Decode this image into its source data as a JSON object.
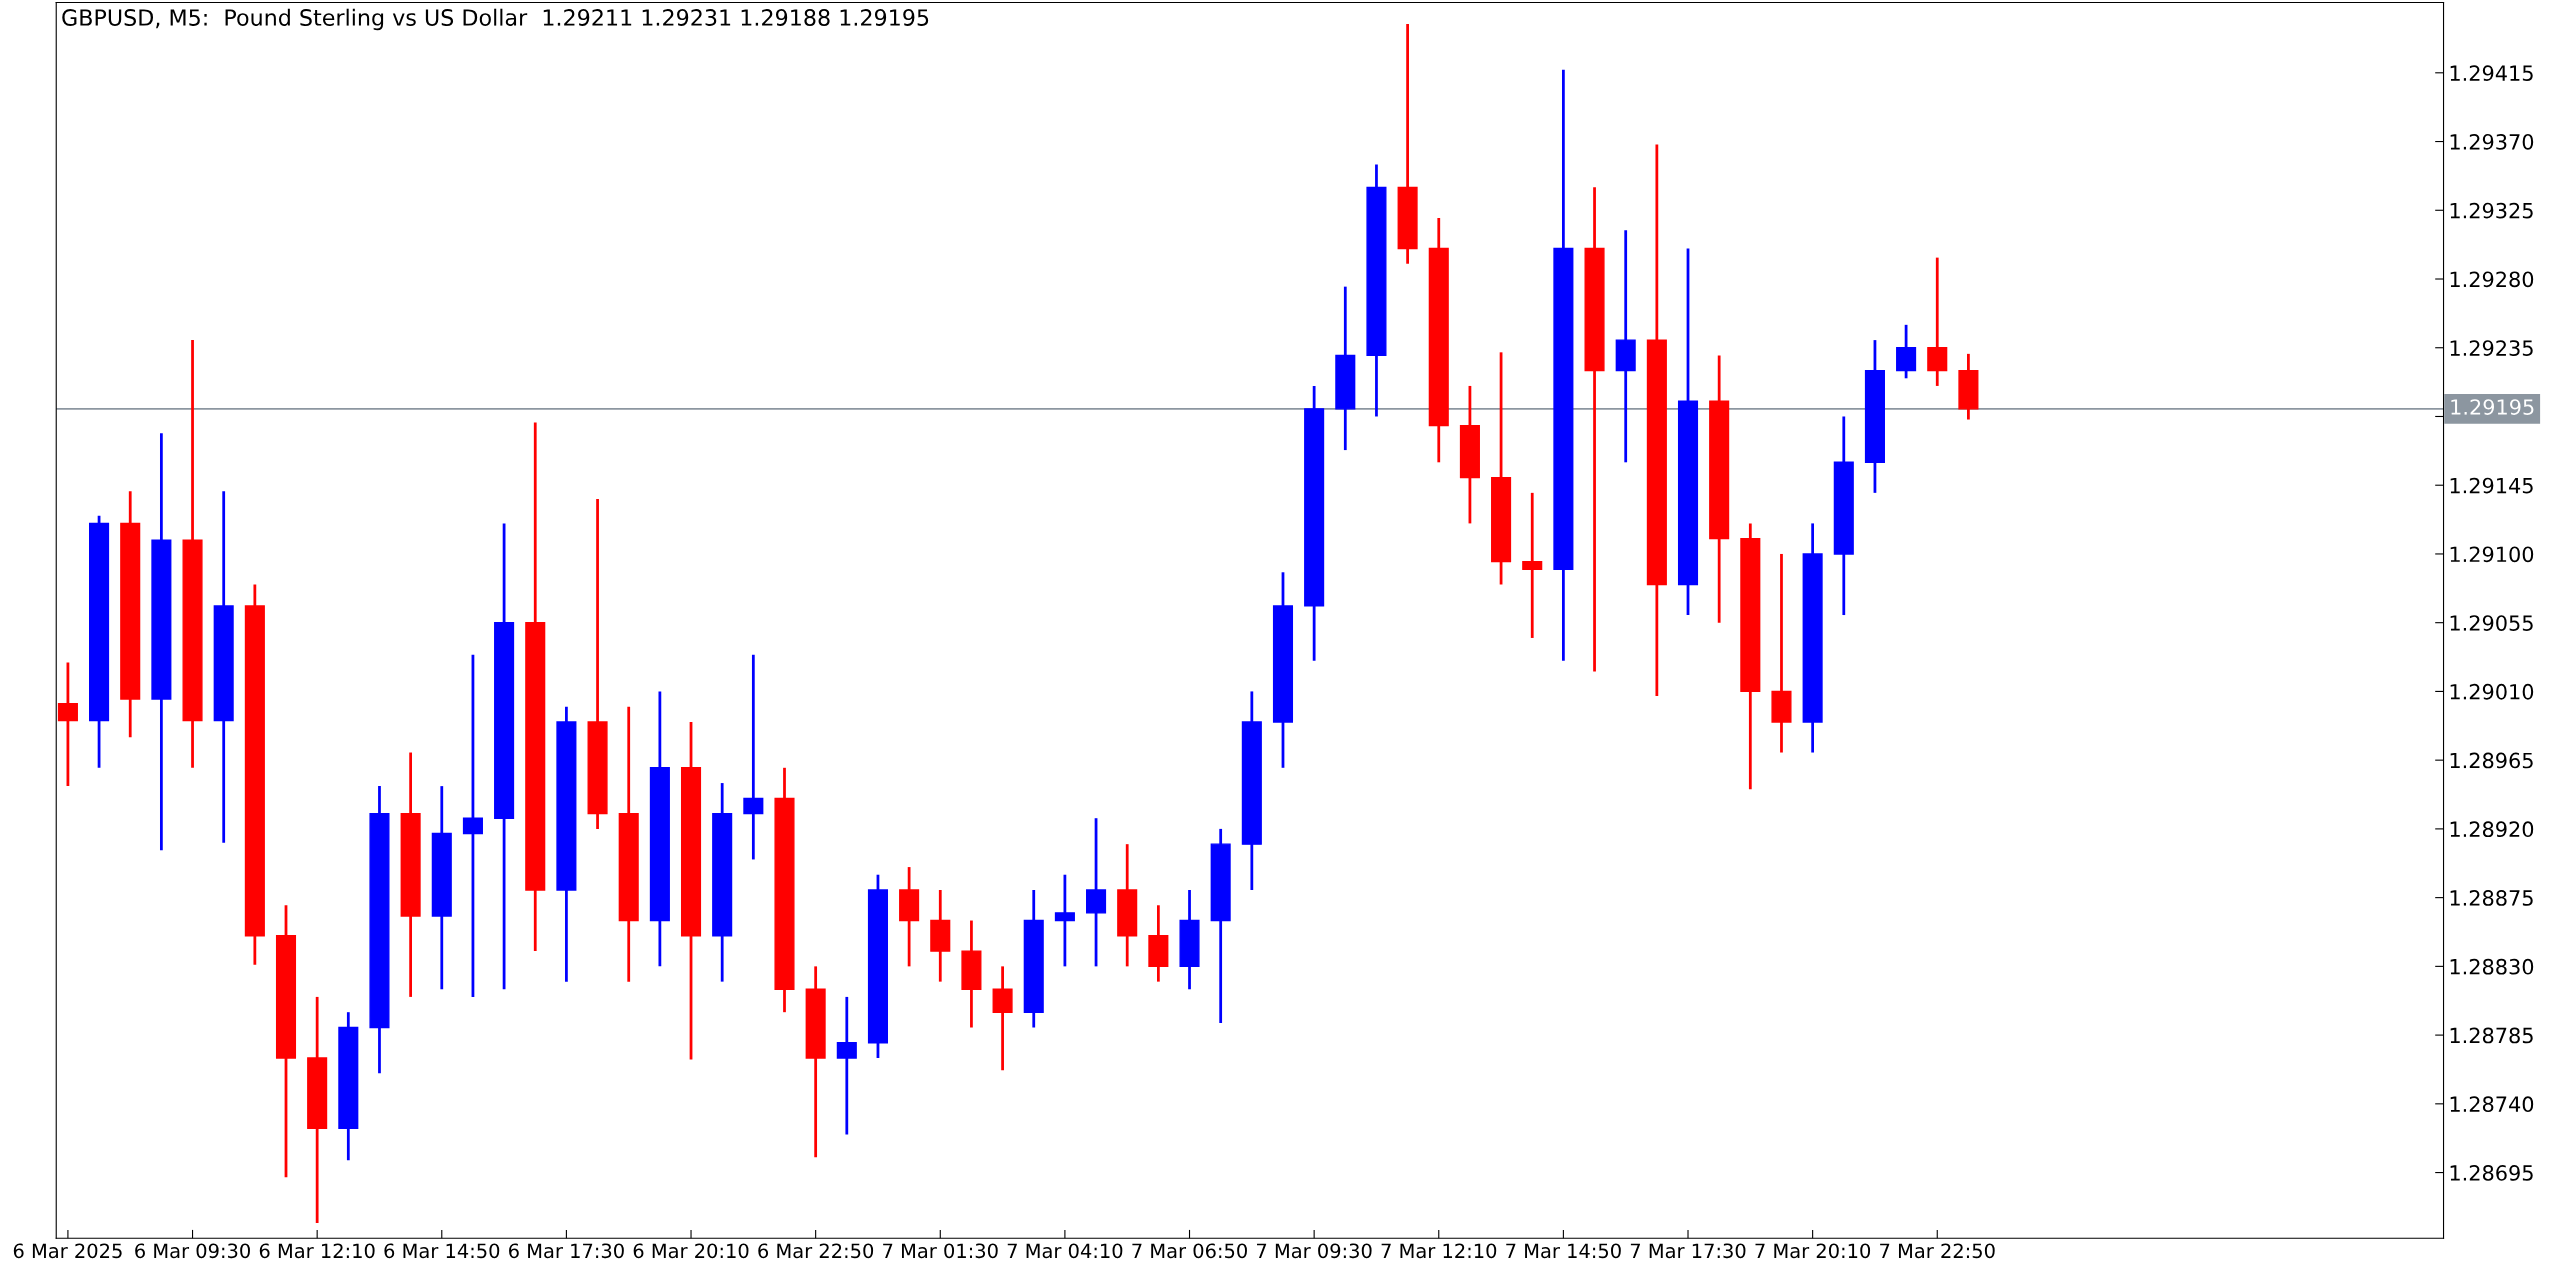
{
  "chart_data": {
    "type": "candlestick",
    "title": "GBPUSD, M5:  Pound Sterling vs US Dollar  1.29211 1.29231 1.29188 1.29195",
    "x": [
      "2025-03-06T06:50",
      "2025-03-06T07:30",
      "2025-03-06T08:10",
      "2025-03-06T08:50",
      "2025-03-06T09:30",
      "2025-03-06T10:10",
      "2025-03-06T10:50",
      "2025-03-06T11:30",
      "2025-03-06T12:10",
      "2025-03-06T12:50",
      "2025-03-06T13:30",
      "2025-03-06T14:10",
      "2025-03-06T14:50",
      "2025-03-06T15:30",
      "2025-03-06T16:10",
      "2025-03-06T16:50",
      "2025-03-06T17:30",
      "2025-03-06T18:10",
      "2025-03-06T18:50",
      "2025-03-06T19:30",
      "2025-03-06T20:10",
      "2025-03-06T20:50",
      "2025-03-06T21:30",
      "2025-03-06T22:10",
      "2025-03-06T22:50",
      "2025-03-06T23:30",
      "2025-03-07T00:10",
      "2025-03-07T00:50",
      "2025-03-07T01:30",
      "2025-03-07T02:10",
      "2025-03-07T02:50",
      "2025-03-07T03:30",
      "2025-03-07T04:10",
      "2025-03-07T04:50",
      "2025-03-07T05:30",
      "2025-03-07T06:10",
      "2025-03-07T06:50",
      "2025-03-07T07:30",
      "2025-03-07T08:10",
      "2025-03-07T08:50",
      "2025-03-07T09:30",
      "2025-03-07T10:10",
      "2025-03-07T10:50",
      "2025-03-07T11:30",
      "2025-03-07T12:10",
      "2025-03-07T12:50",
      "2025-03-07T13:30",
      "2025-03-07T14:10",
      "2025-03-07T14:50",
      "2025-03-07T15:30",
      "2025-03-07T16:10",
      "2025-03-07T16:50",
      "2025-03-07T17:30",
      "2025-03-07T18:10",
      "2025-03-07T18:50",
      "2025-03-07T19:30",
      "2025-03-07T20:10",
      "2025-03-07T20:50",
      "2025-03-07T21:30",
      "2025-03-07T22:10",
      "2025-03-07T22:50",
      "2025-03-07T23:30"
    ],
    "ohlc": [
      [
        1.29002,
        1.29029,
        1.28948,
        1.28991
      ],
      [
        1.28991,
        1.29125,
        1.2896,
        1.2912
      ],
      [
        1.2912,
        1.29141,
        1.2898,
        1.29005
      ],
      [
        1.29005,
        1.29179,
        1.28906,
        1.29109
      ],
      [
        1.29109,
        1.2924,
        1.2896,
        1.28991
      ],
      [
        1.28991,
        1.29141,
        1.28911,
        1.29066
      ],
      [
        1.29066,
        1.2908,
        1.28831,
        1.2885
      ],
      [
        1.2885,
        1.2887,
        1.28692,
        1.2877
      ],
      [
        1.2877,
        1.2881,
        1.28662,
        1.28724
      ],
      [
        1.28724,
        1.288,
        1.28703,
        1.2879
      ],
      [
        1.2879,
        1.28948,
        1.2876,
        1.2893
      ],
      [
        1.2893,
        1.2897,
        1.2881,
        1.28863
      ],
      [
        1.28863,
        1.28948,
        1.28815,
        1.28917
      ],
      [
        1.28917,
        1.29034,
        1.2881,
        1.28927
      ],
      [
        1.28927,
        1.2912,
        1.28815,
        1.29055
      ],
      [
        1.29055,
        1.29186,
        1.2884,
        1.2888
      ],
      [
        1.2888,
        1.29,
        1.2882,
        1.2899
      ],
      [
        1.2899,
        1.29136,
        1.2892,
        1.2893
      ],
      [
        1.2893,
        1.29,
        1.2882,
        1.2886
      ],
      [
        1.2886,
        1.2901,
        1.2883,
        1.2896
      ],
      [
        1.2896,
        1.2899,
        1.28769,
        1.2885
      ],
      [
        1.2885,
        1.2895,
        1.2882,
        1.2893
      ],
      [
        1.2893,
        1.29034,
        1.289,
        1.2894
      ],
      [
        1.2894,
        1.2896,
        1.288,
        1.28815
      ],
      [
        1.28815,
        1.2883,
        1.28705,
        1.2877
      ],
      [
        1.2877,
        1.2881,
        1.2872,
        1.2878
      ],
      [
        1.2878,
        1.2889,
        1.2877,
        1.2888
      ],
      [
        1.2888,
        1.28895,
        1.2883,
        1.2886
      ],
      [
        1.2886,
        1.2888,
        1.2882,
        1.2884
      ],
      [
        1.2884,
        1.2886,
        1.2879,
        1.28815
      ],
      [
        1.28815,
        1.2883,
        1.28762,
        1.288
      ],
      [
        1.288,
        1.2888,
        1.2879,
        1.2886
      ],
      [
        1.2886,
        1.2889,
        1.2883,
        1.28865
      ],
      [
        1.28865,
        1.28927,
        1.2883,
        1.2888
      ],
      [
        1.2888,
        1.2891,
        1.2883,
        1.2885
      ],
      [
        1.2885,
        1.2887,
        1.2882,
        1.2883
      ],
      [
        1.2883,
        1.2888,
        1.28815,
        1.2886
      ],
      [
        1.2886,
        1.2892,
        1.28793,
        1.2891
      ],
      [
        1.2891,
        1.2901,
        1.2888,
        1.2899
      ],
      [
        1.2899,
        1.29088,
        1.2896,
        1.29066
      ],
      [
        1.29066,
        1.2921,
        1.2903,
        1.29195
      ],
      [
        1.29195,
        1.29275,
        1.29168,
        1.2923
      ],
      [
        1.2923,
        1.29355,
        1.2919,
        1.2934
      ],
      [
        1.2934,
        1.29447,
        1.2929,
        1.293
      ],
      [
        1.293,
        1.2932,
        1.2916,
        1.29184
      ],
      [
        1.29184,
        1.2921,
        1.2912,
        1.2915
      ],
      [
        1.2915,
        1.29232,
        1.2908,
        1.29095
      ],
      [
        1.29095,
        1.2914,
        1.29045,
        1.2909
      ],
      [
        1.2909,
        1.29417,
        1.2903,
        1.293
      ],
      [
        1.293,
        1.2934,
        1.29023,
        1.2922
      ],
      [
        1.2922,
        1.29312,
        1.2916,
        1.2924
      ],
      [
        1.2924,
        1.29368,
        1.29007,
        1.2908
      ],
      [
        1.2908,
        1.293,
        1.2906,
        1.292
      ],
      [
        1.292,
        1.2923,
        1.29055,
        1.2911
      ],
      [
        1.2911,
        1.2912,
        1.28946,
        1.2901
      ],
      [
        1.2901,
        1.291,
        1.2897,
        1.2899
      ],
      [
        1.2899,
        1.2912,
        1.2897,
        1.291
      ],
      [
        1.291,
        1.2919,
        1.2906,
        1.2916
      ],
      [
        1.2916,
        1.2924,
        1.2914,
        1.2922
      ],
      [
        1.2922,
        1.2925,
        1.29215,
        1.29235
      ],
      [
        1.29235,
        1.29294,
        1.2921,
        1.2922
      ],
      [
        1.2922,
        1.29231,
        1.29188,
        1.29195
      ]
    ],
    "colors": [
      "#ff0000",
      "#0000ff",
      "#ff0000",
      "#0000ff",
      "#ff0000",
      "#0000ff",
      "#ff0000",
      "#ff0000",
      "#ff0000",
      "#0000ff",
      "#0000ff",
      "#ff0000",
      "#0000ff",
      "#0000ff",
      "#0000ff",
      "#ff0000",
      "#0000ff",
      "#ff0000",
      "#ff0000",
      "#0000ff",
      "#ff0000",
      "#0000ff",
      "#0000ff",
      "#ff0000",
      "#ff0000",
      "#0000ff",
      "#0000ff",
      "#ff0000",
      "#ff0000",
      "#ff0000",
      "#ff0000",
      "#0000ff",
      "#0000ff",
      "#0000ff",
      "#ff0000",
      "#ff0000",
      "#0000ff",
      "#0000ff",
      "#0000ff",
      "#0000ff",
      "#0000ff",
      "#0000ff",
      "#0000ff",
      "#ff0000",
      "#ff0000",
      "#ff0000",
      "#ff0000",
      "#ff0000",
      "#0000ff",
      "#ff0000",
      "#0000ff",
      "#ff0000",
      "#0000ff",
      "#ff0000",
      "#ff0000",
      "#ff0000",
      "#0000ff",
      "#0000ff",
      "#0000ff",
      "#0000ff",
      "#ff0000",
      "#ff0000"
    ],
    "xlim": [
      "2025-03-06T06:35",
      "2025-03-08T09:40"
    ],
    "xticks": [
      {
        "value": "2025-03-06T06:50",
        "label": "6 Mar 2025"
      },
      {
        "value": "2025-03-06T09:30",
        "label": "6 Mar 09:30"
      },
      {
        "value": "2025-03-06T12:10",
        "label": "6 Mar 12:10"
      },
      {
        "value": "2025-03-06T14:50",
        "label": "6 Mar 14:50"
      },
      {
        "value": "2025-03-06T17:30",
        "label": "6 Mar 17:30"
      },
      {
        "value": "2025-03-06T20:10",
        "label": "6 Mar 20:10"
      },
      {
        "value": "2025-03-06T22:50",
        "label": "6 Mar 22:50"
      },
      {
        "value": "2025-03-07T01:30",
        "label": "7 Mar 01:30"
      },
      {
        "value": "2025-03-07T04:10",
        "label": "7 Mar 04:10"
      },
      {
        "value": "2025-03-07T06:50",
        "label": "7 Mar 06:50"
      },
      {
        "value": "2025-03-07T09:30",
        "label": "7 Mar 09:30"
      },
      {
        "value": "2025-03-07T12:10",
        "label": "7 Mar 12:10"
      },
      {
        "value": "2025-03-07T14:50",
        "label": "7 Mar 14:50"
      },
      {
        "value": "2025-03-07T17:30",
        "label": "7 Mar 17:30"
      },
      {
        "value": "2025-03-07T20:10",
        "label": "7 Mar 20:10"
      },
      {
        "value": "2025-03-07T22:50",
        "label": "7 Mar 22:50"
      }
    ],
    "ylim": [
      1.28652,
      1.29461
    ],
    "yticks": [
      {
        "value": 1.28695,
        "label": "1.28695"
      },
      {
        "value": 1.2874,
        "label": "1.28740"
      },
      {
        "value": 1.28785,
        "label": "1.28785"
      },
      {
        "value": 1.2883,
        "label": "1.28830"
      },
      {
        "value": 1.28875,
        "label": "1.28875"
      },
      {
        "value": 1.2892,
        "label": "1.28920"
      },
      {
        "value": 1.28965,
        "label": "1.28965"
      },
      {
        "value": 1.2901,
        "label": "1.29010"
      },
      {
        "value": 1.29055,
        "label": "1.29055"
      },
      {
        "value": 1.291,
        "label": "1.29100"
      },
      {
        "value": 1.29145,
        "label": "1.29145"
      },
      {
        "value": 1.2919,
        "label": null
      },
      {
        "value": 1.29235,
        "label": "1.29235"
      },
      {
        "value": 1.2928,
        "label": "1.29280"
      },
      {
        "value": 1.29325,
        "label": "1.29325"
      },
      {
        "value": 1.2937,
        "label": "1.29370"
      },
      {
        "value": 1.29415,
        "label": "1.29415"
      }
    ],
    "ref_lines": [
      {
        "axis": "y",
        "value": 1.29195,
        "label": "1.29195",
        "color": "#8c96a0"
      }
    ],
    "grid": false
  }
}
